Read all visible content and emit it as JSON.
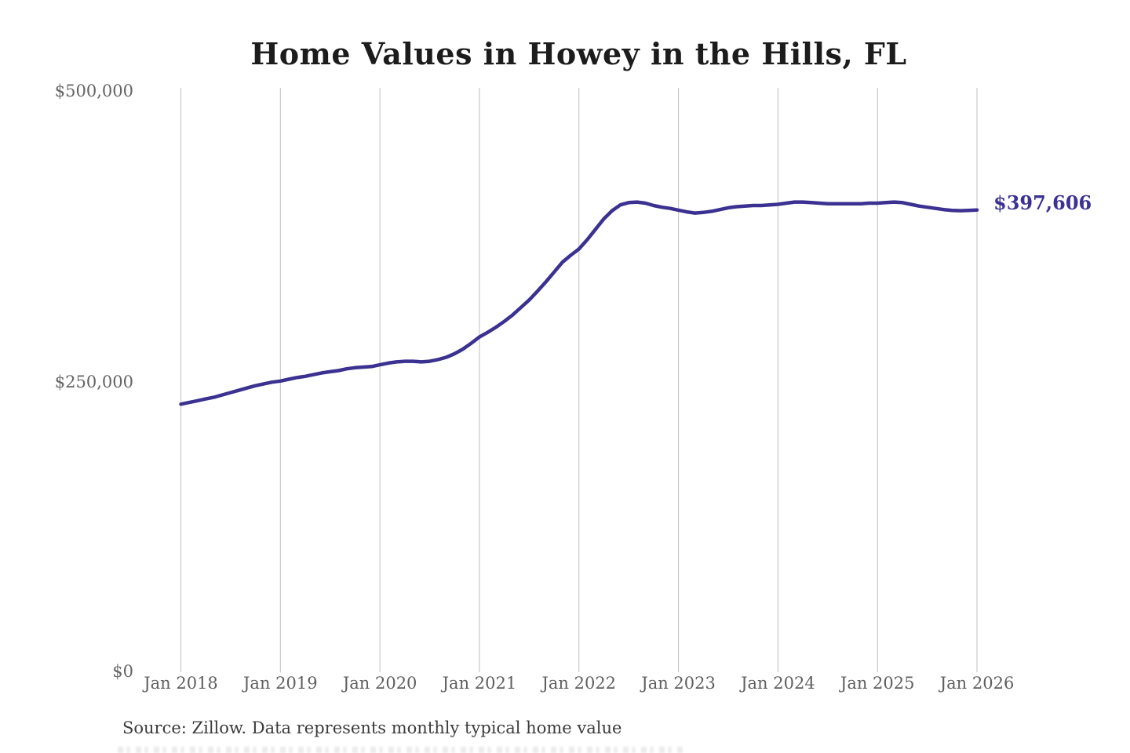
{
  "title": "Home Values in Howey in the Hills, FL",
  "annotation": {
    "final_value_label": "$397,606"
  },
  "source_note": "Source: Zillow. Data represents monthly typical home value",
  "colors": {
    "background": "#ffffff",
    "line": "#3a3191",
    "annotation_text": "#3b3294",
    "gridline": "#c9c9c9",
    "axis_text": "#5f5f5f",
    "title_text": "#1c1c1c",
    "source_text": "#3c3c3c"
  },
  "chart_data": {
    "type": "line",
    "title": "Home Values in Howey in the Hills, FL",
    "xlabel": "",
    "ylabel": "",
    "ylim": [
      0,
      500000
    ],
    "y_tick_labels": [
      "$0",
      "$250,000",
      "$500,000"
    ],
    "y_tick_values": [
      0,
      250000,
      500000
    ],
    "x_tick_labels": [
      "Jan 2018",
      "Jan 2019",
      "Jan 2020",
      "Jan 2021",
      "Jan 2022",
      "Jan 2023",
      "Jan 2024",
      "Jan 2025",
      "Jan 2026"
    ],
    "grid": "vertical-only",
    "legend_position": "none",
    "annotation_at_line_end": "$397,606",
    "series": [
      {
        "name": "Monthly typical home value (USD)",
        "x_start": "2018-01",
        "x_step_months": 1,
        "values": [
          230000,
          231500,
          233000,
          234500,
          236000,
          238000,
          240000,
          242000,
          244000,
          246000,
          247500,
          249000,
          250000,
          251500,
          253000,
          254000,
          255500,
          257000,
          258000,
          259000,
          260500,
          261500,
          262000,
          262500,
          264000,
          265500,
          266500,
          267000,
          267000,
          266500,
          267000,
          268500,
          270500,
          273500,
          277500,
          282500,
          288000,
          292000,
          296500,
          301500,
          307000,
          313500,
          320000,
          327500,
          335500,
          344000,
          352500,
          358500,
          364000,
          372000,
          381000,
          390000,
          397000,
          402000,
          404000,
          404500,
          403500,
          401500,
          400000,
          399000,
          397500,
          396000,
          395000,
          395500,
          396500,
          398000,
          399500,
          400500,
          401000,
          401500,
          401500,
          402000,
          402500,
          403500,
          404500,
          404500,
          404000,
          403500,
          403000,
          403000,
          403000,
          403000,
          403000,
          403500,
          403500,
          404000,
          404500,
          404000,
          402500,
          401000,
          400000,
          399000,
          398000,
          397300,
          397000,
          397300,
          397606
        ],
        "final_value": 397606
      }
    ]
  }
}
